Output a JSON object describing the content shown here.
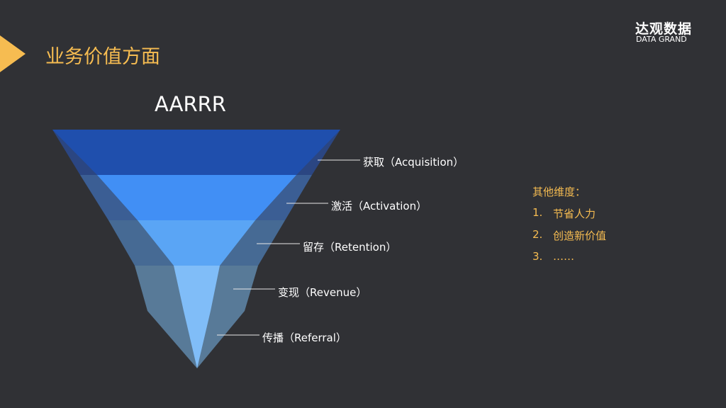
{
  "header": {
    "title": "业务价值方面",
    "logo_cn": "达观数据",
    "logo_en": "DATA GRAND",
    "accent": "#f6bc51"
  },
  "funnel": {
    "title": "AARRR",
    "stages": [
      {
        "label": "获取（Acquisition）",
        "color": "#1f4fad"
      },
      {
        "label": "激活（Activation）",
        "color": "#418ff5"
      },
      {
        "label": "留存（Retention）",
        "color": "#5aa5f5"
      },
      {
        "label": "变现（Revenue）",
        "color": "#80bdf8"
      },
      {
        "label": "传播（Referral）",
        "color": "#80bdf8"
      }
    ]
  },
  "other": {
    "heading": "其他维度：",
    "items": [
      {
        "num": "1.",
        "text": "节省人力"
      },
      {
        "num": "2.",
        "text": "创造新价值"
      },
      {
        "num": "3.",
        "text": "……"
      }
    ]
  }
}
